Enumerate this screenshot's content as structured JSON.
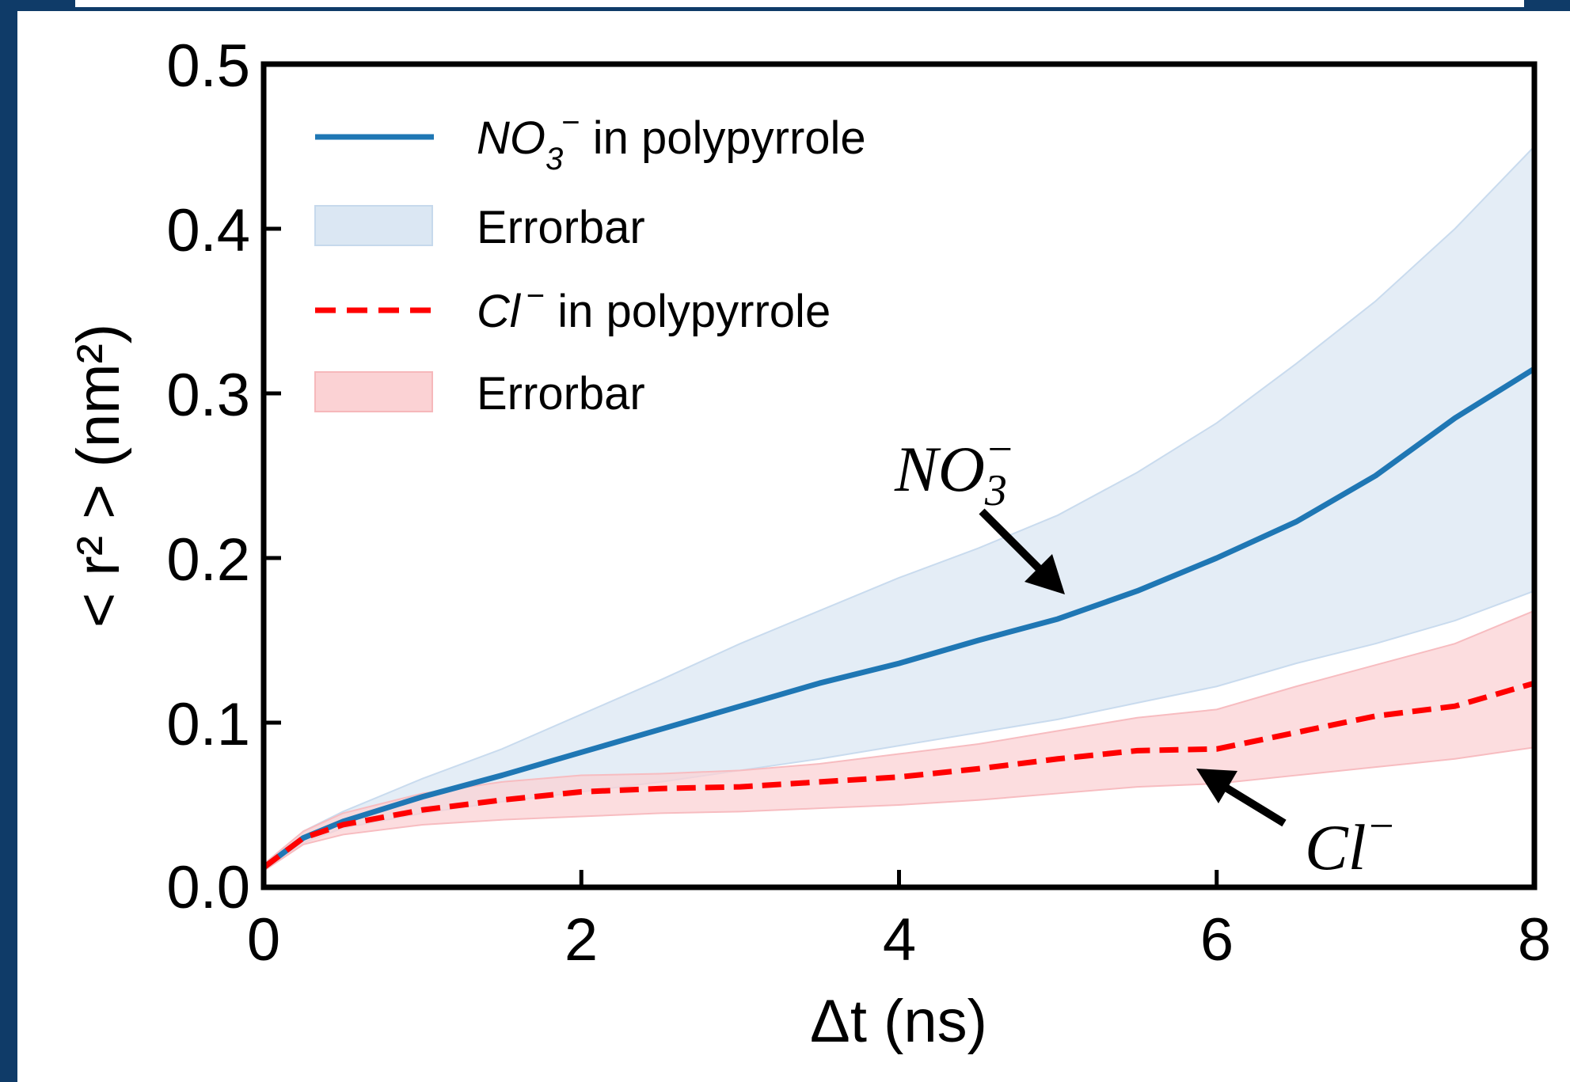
{
  "chart_data": {
    "type": "line",
    "xlabel": "Δt (ns)",
    "ylabel": "< r² > (nm²)",
    "xlim": [
      0,
      8
    ],
    "ylim": [
      0,
      0.5
    ],
    "xticks": [
      "0",
      "2",
      "4",
      "6",
      "8"
    ],
    "yticks": [
      "0.0",
      "0.1",
      "0.2",
      "0.3",
      "0.4",
      "0.5"
    ],
    "grid": false,
    "legend_position": "top-left",
    "x": [
      0,
      0.25,
      0.5,
      1,
      1.5,
      2,
      2.5,
      3,
      3.5,
      4,
      4.5,
      5,
      5.5,
      6,
      6.5,
      7,
      7.5,
      8
    ],
    "series": [
      {
        "name": "NO3− in polypyrrole",
        "color": "#1f77b4",
        "style": "solid",
        "values": [
          0.012,
          0.03,
          0.04,
          0.055,
          0.068,
          0.082,
          0.096,
          0.11,
          0.124,
          0.136,
          0.15,
          0.163,
          0.18,
          0.2,
          0.222,
          0.25,
          0.285,
          0.315
        ],
        "band_label": "Errorbar",
        "band_lower": [
          0.01,
          0.027,
          0.036,
          0.045,
          0.052,
          0.058,
          0.064,
          0.071,
          0.078,
          0.086,
          0.094,
          0.102,
          0.112,
          0.122,
          0.136,
          0.148,
          0.162,
          0.18
        ],
        "band_upper": [
          0.014,
          0.034,
          0.046,
          0.066,
          0.084,
          0.105,
          0.126,
          0.148,
          0.168,
          0.188,
          0.206,
          0.226,
          0.252,
          0.282,
          0.318,
          0.356,
          0.4,
          0.45
        ]
      },
      {
        "name": "Cl − in polypyrrole",
        "color": "#ff0000",
        "style": "dashed",
        "values": [
          0.012,
          0.03,
          0.038,
          0.047,
          0.053,
          0.058,
          0.06,
          0.061,
          0.064,
          0.067,
          0.072,
          0.078,
          0.083,
          0.084,
          0.094,
          0.104,
          0.11,
          0.124
        ],
        "band_label": "Errorbar",
        "band_lower": [
          0.01,
          0.026,
          0.032,
          0.038,
          0.041,
          0.043,
          0.045,
          0.046,
          0.048,
          0.05,
          0.053,
          0.057,
          0.061,
          0.063,
          0.068,
          0.073,
          0.078,
          0.085
        ],
        "band_upper": [
          0.014,
          0.034,
          0.045,
          0.057,
          0.064,
          0.068,
          0.069,
          0.071,
          0.075,
          0.081,
          0.087,
          0.095,
          0.103,
          0.108,
          0.122,
          0.135,
          0.148,
          0.168
        ]
      }
    ],
    "annotations": [
      {
        "label": "NO3−",
        "points_to": [
          5.1,
          0.163
        ]
      },
      {
        "label": "Cl−",
        "points_to": [
          5.75,
          0.082
        ]
      }
    ]
  },
  "legend": {
    "entries": [
      {
        "main": "NO",
        "sub": "3",
        "sup": "−",
        "rest": " in polypyrrole"
      },
      {
        "main": "Errorbar"
      },
      {
        "main": "Cl",
        "sup": "−",
        "rest": " in polypyrrole"
      },
      {
        "main": "Errorbar"
      }
    ]
  },
  "colors": {
    "blue_line": "#1f77b4",
    "blue_band": "#dbe7f3",
    "red_line": "#ff0000",
    "red_band": "#fbd2d4",
    "frame": "#0f3b68"
  }
}
